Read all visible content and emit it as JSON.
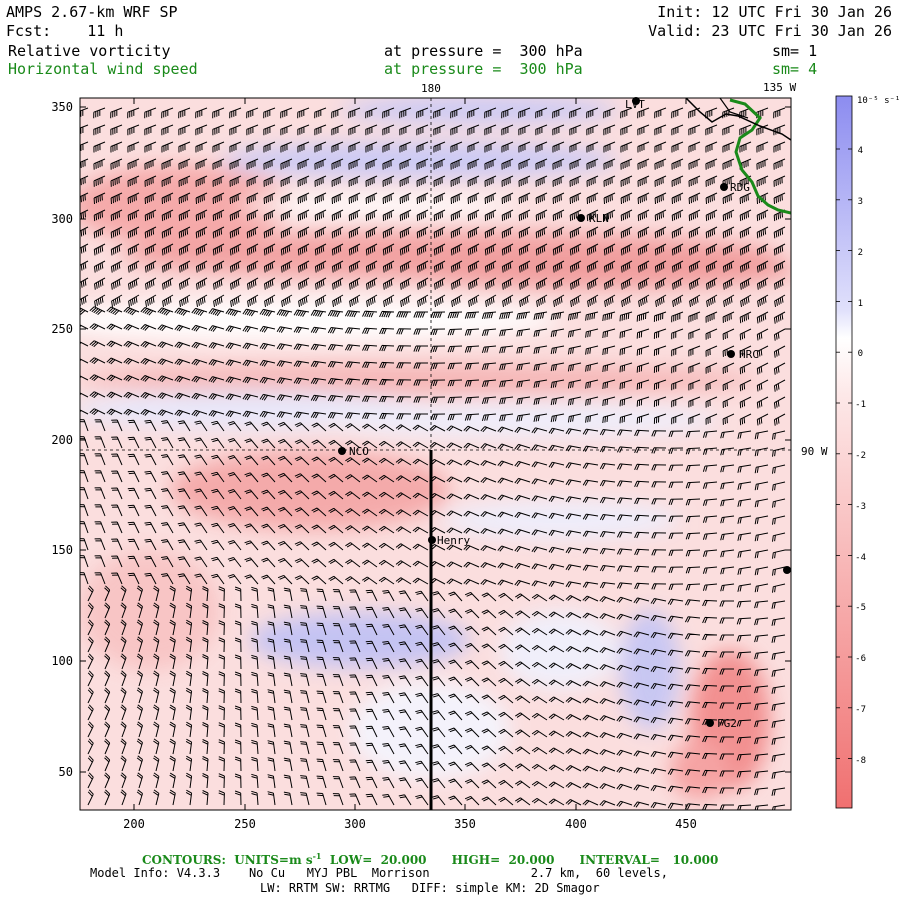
{
  "header": {
    "model_title": "AMPS 2.67-km WRF SP",
    "forecast": "Fcst:    11 h",
    "init": "Init: 12 UTC Fri 30 Jan 26",
    "valid": "Valid: 23 UTC Fri 30 Jan 26",
    "field1_name": "Relative vorticity",
    "field1_level": "at pressure =  300 hPa",
    "field1_smooth": "sm= 1",
    "field2_name": "Horizontal wind speed",
    "field2_level": "at pressure =  300 hPa",
    "field2_smooth": "sm= 4"
  },
  "map": {
    "x_ticks": [
      "200",
      "250",
      "300",
      "350",
      "400",
      "450"
    ],
    "y_ticks": [
      "350",
      "300",
      "250",
      "200",
      "150",
      "100",
      "50"
    ],
    "lon_label_180": "180",
    "lon_label_135w": "135 W",
    "lon_label_90w": "90 W",
    "stations": [
      {
        "name": "LVT"
      },
      {
        "name": "RDG"
      },
      {
        "name": "KLN"
      },
      {
        "name": "HRC"
      },
      {
        "name": "NCO"
      },
      {
        "name": "Henry"
      },
      {
        "name": "FG2"
      },
      {
        "name": ""
      }
    ]
  },
  "colorbar": {
    "units": "10⁻⁵ s⁻¹",
    "tick_labels": [
      "4",
      "3",
      "2",
      "1",
      "0",
      "-1",
      "-2",
      "-3",
      "-4",
      "-5",
      "-6",
      "-7",
      "-8"
    ]
  },
  "footer": {
    "contours": "CONTOURS:  UNITS=m s",
    "contours_sup": "-1",
    "contours_rest": "  LOW=  20.000      HIGH=  20.000      INTERVAL=   10.000",
    "model_info": "Model Info: V4.3.3    No Cu   MYJ PBL  Morrison              2.7 km,  60 levels,",
    "model_info2": "LW: RRTM SW: RRTMG   DIFF: simple KM: 2D Smagor"
  },
  "colors": {
    "positive": "#8c8cf0",
    "negative": "#f07878",
    "coast": "#1a8a1a"
  }
}
